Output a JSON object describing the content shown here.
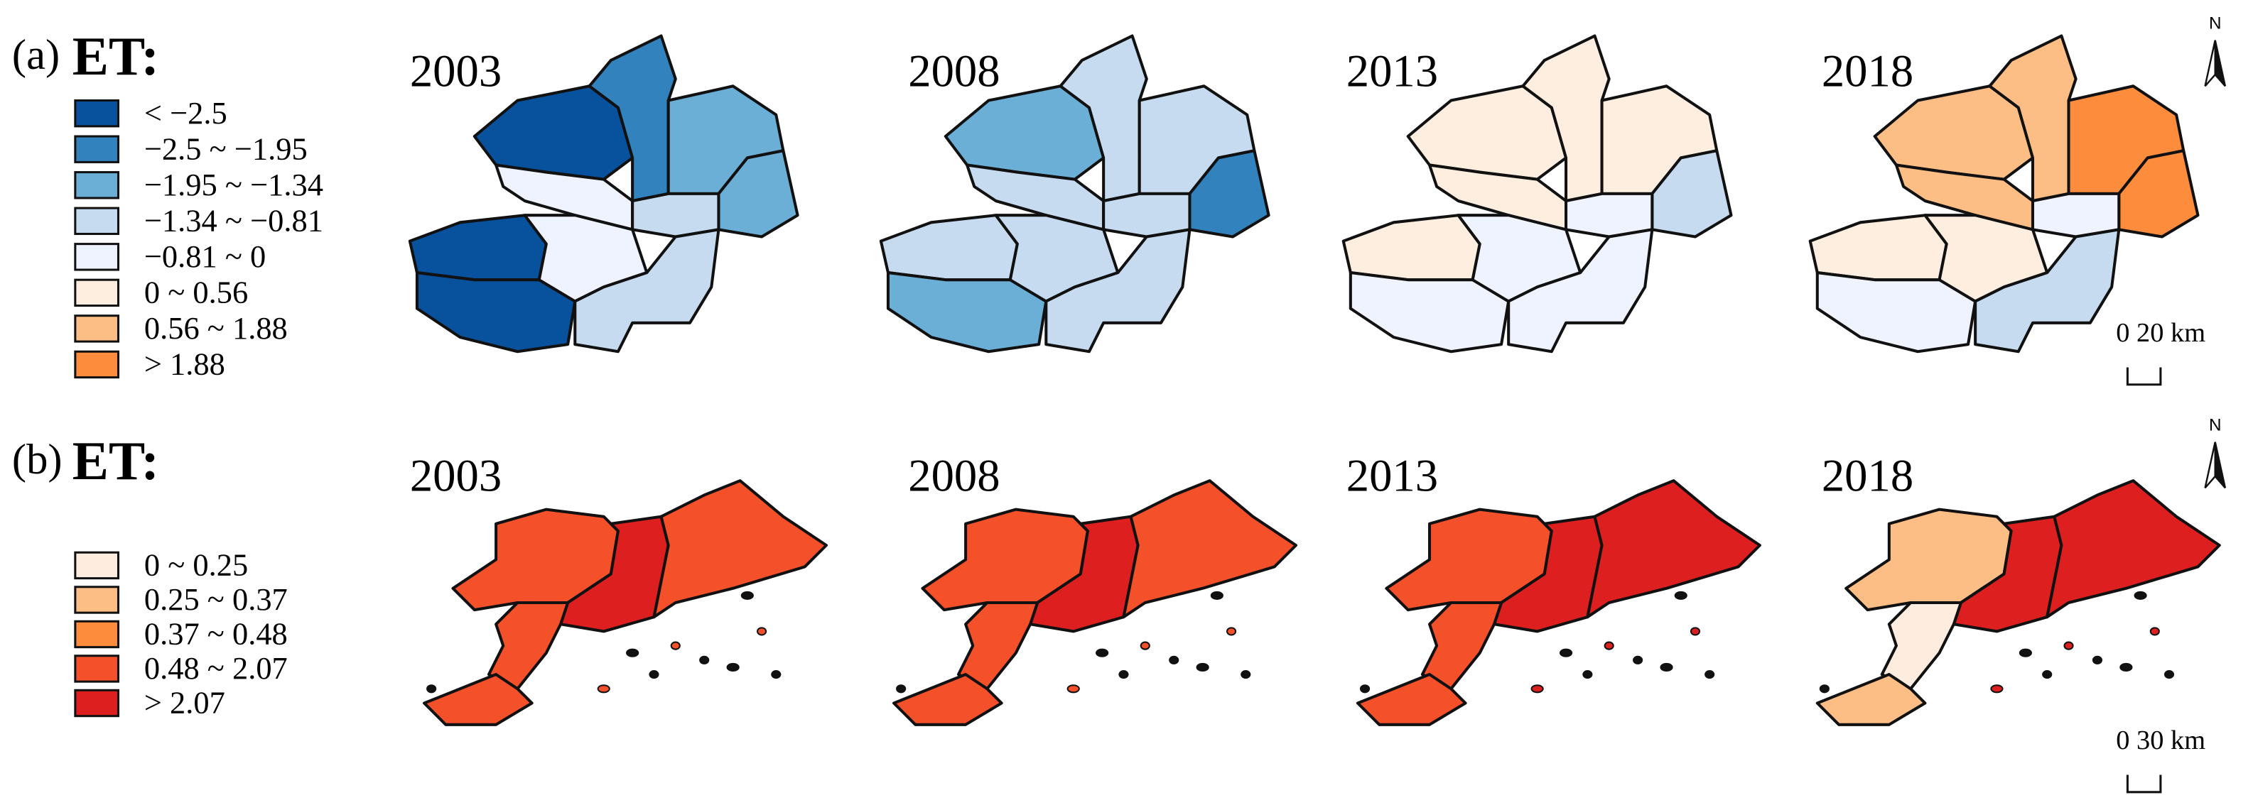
{
  "panels": [
    {
      "label": "(a)",
      "title": "ET:",
      "legend": [
        {
          "label": "< −2.5",
          "color": "#08519c"
        },
        {
          "label": "−2.5 ~ −1.95",
          "color": "#3182bd"
        },
        {
          "label": "−1.95 ~ −1.34",
          "color": "#6baed6"
        },
        {
          "label": "−1.34 ~ −0.81",
          "color": "#c6dbef"
        },
        {
          "label": "−0.81 ~ 0",
          "color": "#eff3ff"
        },
        {
          "label": "0 ~ 0.56",
          "color": "#fdeee0"
        },
        {
          "label": "0.56 ~ 1.88",
          "color": "#fdbe85"
        },
        {
          "label": "> 1.88",
          "color": "#fd8d3c"
        }
      ],
      "maps": [
        {
          "year": "2003"
        },
        {
          "year": "2008"
        },
        {
          "year": "2013"
        },
        {
          "year": "2018"
        }
      ],
      "north": "N",
      "scale_bar": "0 20 km"
    },
    {
      "label": "(b)",
      "title": "ET:",
      "legend": [
        {
          "label": "0 ~ 0.25",
          "color": "#feedde"
        },
        {
          "label": "0.25 ~ 0.37",
          "color": "#fdbe85"
        },
        {
          "label": "0.37 ~ 0.48",
          "color": "#fd8d3c"
        },
        {
          "label": "0.48 ~ 2.07",
          "color": "#f4502a"
        },
        {
          "label": "> 2.07",
          "color": "#de1f1f"
        }
      ],
      "maps": [
        {
          "year": "2003"
        },
        {
          "year": "2008"
        },
        {
          "year": "2013"
        },
        {
          "year": "2018"
        }
      ],
      "north": "N",
      "scale_bar": "0 30 km"
    }
  ]
}
